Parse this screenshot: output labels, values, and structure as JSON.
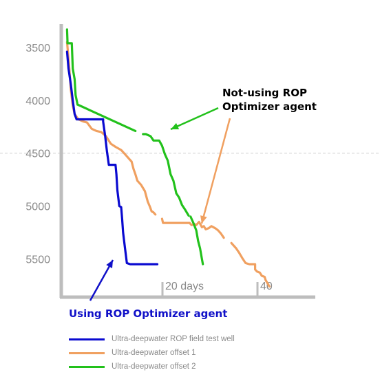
{
  "chart_data": {
    "type": "line",
    "ylim": [
      5850,
      3300
    ],
    "xlim": [
      -0.8,
      52
    ],
    "y_ticks": [
      3500,
      4000,
      4500,
      5000,
      5500
    ],
    "x_tick_labels": [
      "20 days",
      "40"
    ],
    "x_ticks": [
      20,
      40
    ],
    "reference_line": {
      "y": 4500,
      "style": "dashed",
      "color": "#c8c8c8"
    },
    "series": [
      {
        "name": "Ultra-deepwater ROP field test well",
        "color": "#0a0ad0",
        "points": [
          [
            0.2,
            3540
          ],
          [
            0.5,
            3700
          ],
          [
            1,
            3850
          ],
          [
            1.4,
            4000
          ],
          [
            1.8,
            4130
          ],
          [
            2.2,
            4180
          ],
          [
            5,
            4180
          ],
          [
            7.8,
            4180
          ],
          [
            7.8,
            4200
          ],
          [
            8.2,
            4330
          ],
          [
            8.6,
            4480
          ],
          [
            9,
            4610
          ],
          [
            10.4,
            4610
          ],
          [
            10.6,
            4700
          ],
          [
            10.8,
            4850
          ],
          [
            11.2,
            5000
          ],
          [
            11.6,
            5010
          ],
          [
            11.8,
            5120
          ],
          [
            12,
            5250
          ],
          [
            12.4,
            5400
          ],
          [
            12.8,
            5540
          ],
          [
            13.5,
            5550
          ],
          [
            19.2,
            5550
          ]
        ]
      },
      {
        "name": "Ultra-deepwater offset 1",
        "color": "#f0a060",
        "points": [
          [
            0.2,
            3450
          ],
          [
            0.6,
            3650
          ],
          [
            1,
            3900
          ],
          [
            1.4,
            4050
          ],
          [
            1.8,
            4130
          ],
          [
            2.6,
            4180
          ],
          [
            3.6,
            4200
          ],
          [
            4.4,
            4210
          ],
          [
            5.4,
            4270
          ],
          [
            6.4,
            4290
          ],
          [
            7.4,
            4300
          ],
          [
            8.4,
            4340
          ],
          [
            9.4,
            4410
          ],
          [
            10.4,
            4440
          ],
          [
            11.6,
            4470
          ],
          [
            12.4,
            4510
          ],
          [
            13.2,
            4550
          ],
          [
            13.8,
            4580
          ],
          [
            14.2,
            4650
          ],
          [
            14.6,
            4700
          ],
          [
            15,
            4760
          ],
          [
            15.8,
            4800
          ],
          [
            16.6,
            4860
          ],
          [
            17.2,
            4960
          ],
          [
            17.6,
            5000
          ],
          [
            18,
            5050
          ],
          [
            18.4,
            5060
          ],
          [
            18.8,
            5080
          ]
        ],
        "points_segment_2": [
          [
            20.2,
            5120
          ],
          [
            20.4,
            5160
          ],
          [
            22,
            5160
          ],
          [
            24,
            5160
          ],
          [
            26,
            5160
          ],
          [
            26.4,
            5180
          ],
          [
            27,
            5170
          ],
          [
            27.4,
            5180
          ],
          [
            28,
            5150
          ],
          [
            28.6,
            5200
          ],
          [
            29,
            5190
          ],
          [
            29.4,
            5220
          ],
          [
            30,
            5210
          ],
          [
            30.6,
            5190
          ],
          [
            31.4,
            5210
          ],
          [
            32,
            5230
          ],
          [
            32.6,
            5260
          ],
          [
            33.2,
            5300
          ]
        ],
        "points_segment_3": [
          [
            34.8,
            5350
          ],
          [
            35.8,
            5400
          ],
          [
            36.4,
            5440
          ],
          [
            37.2,
            5500
          ],
          [
            37.8,
            5540
          ],
          [
            38.6,
            5550
          ],
          [
            39.8,
            5550
          ],
          [
            39.8,
            5600
          ],
          [
            40.2,
            5620
          ],
          [
            40.8,
            5630
          ],
          [
            41.2,
            5660
          ],
          [
            41.8,
            5670
          ],
          [
            42,
            5700
          ],
          [
            42.4,
            5730
          ],
          [
            42.8,
            5760
          ]
        ]
      },
      {
        "name": "Ultra-deepwater offset 2",
        "color": "#22c11b",
        "points": [
          [
            0.2,
            3330
          ],
          [
            0.3,
            3460
          ],
          [
            1.2,
            3460
          ],
          [
            1.4,
            3700
          ],
          [
            1.8,
            3800
          ],
          [
            2,
            3950
          ],
          [
            2.4,
            4040
          ]
        ],
        "line_segment": [
          [
            2.4,
            4040
          ],
          [
            14.6,
            4290
          ]
        ],
        "points_segment_2": [
          [
            16.2,
            4320
          ],
          [
            16.8,
            4320
          ],
          [
            17.8,
            4340
          ],
          [
            18.4,
            4380
          ],
          [
            19.6,
            4380
          ],
          [
            20.2,
            4430
          ],
          [
            20.8,
            4510
          ],
          [
            21.4,
            4570
          ],
          [
            22,
            4700
          ],
          [
            22.6,
            4760
          ],
          [
            23.2,
            4880
          ],
          [
            23.8,
            4920
          ],
          [
            24.4,
            4990
          ],
          [
            25,
            5030
          ],
          [
            25.8,
            5090
          ]
        ],
        "points_segment_3": [
          [
            26.2,
            5100
          ],
          [
            26.8,
            5160
          ],
          [
            27.4,
            5230
          ],
          [
            27.8,
            5330
          ],
          [
            28.2,
            5400
          ],
          [
            28.6,
            5500
          ],
          [
            28.8,
            5550
          ]
        ]
      }
    ],
    "annotations": [
      {
        "text_lines": [
          "Not-using ROP",
          "Optimizer agent"
        ],
        "color": "#000000"
      },
      {
        "text_lines": [
          "Using ROP Optimizer agent"
        ],
        "color": "#1010c8"
      }
    ]
  },
  "legend": [
    {
      "label": "Ultra-deepwater ROP field test well",
      "color": "#0a0ad0"
    },
    {
      "label": "Ultra-deepwater offset 1",
      "color": "#f0a060"
    },
    {
      "label": "Ultra-deepwater offset 2",
      "color": "#22c11b"
    }
  ]
}
